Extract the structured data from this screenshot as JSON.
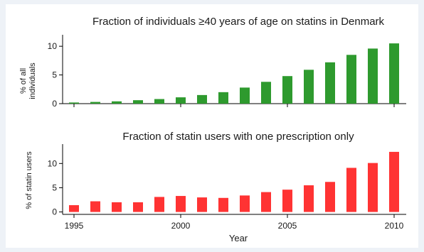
{
  "chart_data": [
    {
      "type": "bar",
      "title": "Fraction of individuals ≥40 years of age on statins in Denmark",
      "ylabel_lines": [
        "% of all",
        "individuals"
      ],
      "xlabel": "",
      "categories": [
        1995,
        1996,
        1997,
        1998,
        1999,
        2000,
        2001,
        2002,
        2003,
        2004,
        2005,
        2006,
        2007,
        2008,
        2009,
        2010
      ],
      "values": [
        0.2,
        0.3,
        0.4,
        0.6,
        0.8,
        1.1,
        1.5,
        2.0,
        2.8,
        3.8,
        4.8,
        5.9,
        7.2,
        8.5,
        9.6,
        10.5
      ],
      "ylim": [
        0,
        12
      ],
      "yticks": [
        0,
        5,
        10
      ],
      "color": "#2e9a2e",
      "grid": false
    },
    {
      "type": "bar",
      "title": "Fraction of statin users with one prescription only",
      "ylabel_lines": [
        "% of statin users"
      ],
      "xlabel": "Year",
      "categories": [
        1995,
        1996,
        1997,
        1998,
        1999,
        2000,
        2001,
        2002,
        2003,
        2004,
        2005,
        2006,
        2007,
        2008,
        2009,
        2010
      ],
      "values": [
        1.4,
        2.2,
        2.0,
        2.0,
        3.1,
        3.3,
        3.0,
        2.9,
        3.4,
        4.1,
        4.6,
        5.5,
        6.2,
        9.1,
        10.1,
        12.4
      ],
      "ylim": [
        -0.5,
        14
      ],
      "yticks": [
        0,
        5,
        10
      ],
      "xticks": [
        1995,
        2000,
        2005,
        2010
      ],
      "color": "#ff3333",
      "grid": false
    }
  ]
}
